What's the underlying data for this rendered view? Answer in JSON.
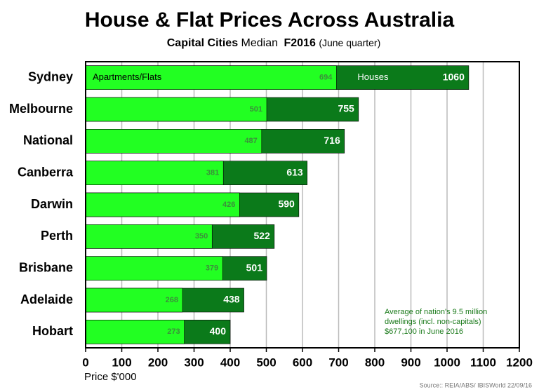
{
  "chart_data": {
    "type": "bar",
    "orientation": "horizontal",
    "title": "House & Flat Prices Across Australia",
    "subtitle_parts": [
      "Capital Cities",
      "Median",
      "F2016",
      "(June quarter)"
    ],
    "categories": [
      "Sydney",
      "Melbourne",
      "National",
      "Canberra",
      "Darwin",
      "Perth",
      "Brisbane",
      "Adelaide",
      "Hobart"
    ],
    "series": [
      {
        "name": "Houses",
        "color": "#0b7a1a",
        "values": [
          1060,
          755,
          716,
          613,
          590,
          522,
          501,
          438,
          400
        ]
      },
      {
        "name": "Apartments/Flats",
        "color": "#22ff22",
        "values": [
          694,
          501,
          487,
          381,
          426,
          350,
          379,
          268,
          273
        ]
      }
    ],
    "xlim": [
      0,
      1200
    ],
    "xticks": [
      0,
      100,
      200,
      300,
      400,
      500,
      600,
      700,
      800,
      900,
      1000,
      1100,
      1200
    ],
    "grid": true,
    "x_label": "Price  $'000",
    "annotation": [
      "Average of nation's 9.5 million",
      "dwellings  (incl. non-capitals)",
      "$677,100 in June 2016"
    ],
    "source": "Source:: REIA/ABS/ IBISWorld 22/09/16"
  }
}
